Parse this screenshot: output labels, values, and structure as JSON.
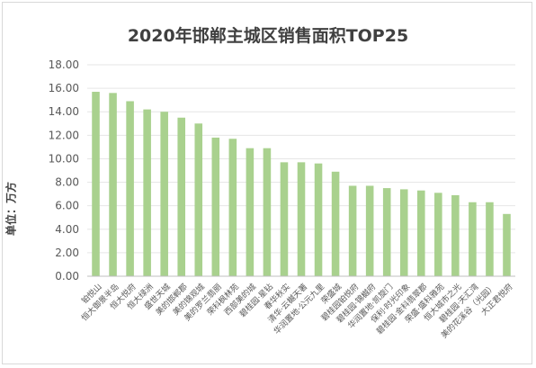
{
  "chart_data": {
    "type": "bar",
    "title": "2020年邯郸主城区销售面积TOP25",
    "ylabel": "单位：万方",
    "ylim": [
      0,
      18
    ],
    "yticks": [
      "0.00",
      "2.00",
      "4.00",
      "6.00",
      "8.00",
      "10.00",
      "12.00",
      "14.00",
      "16.00",
      "18.00"
    ],
    "grid": true,
    "bar_color": "#a9d18e",
    "categories": [
      "铂悦山",
      "恒大御景半岛",
      "恒大悦府",
      "恒大绿洲",
      "盛世天城",
      "美的邯郸郡",
      "美的锦观城",
      "美的罗兰翡丽",
      "荣科枫林苑",
      "西部美的城",
      "碧桂园·星钻",
      "春华秋实",
      "清华·云樾天著",
      "华润置地·公元九里",
      "荣盛城",
      "碧桂园铂悦府",
      "碧桂园·锦樾府",
      "华润置地·凯旋门",
      "保利·时光印象",
      "碧桂园·金科翡翠郡",
      "荣盛·盛科雅苑",
      "恒大城市之光",
      "碧桂园·天汇湾",
      "美的花溪谷（光园）",
      "大正君悦府"
    ],
    "values": [
      15.7,
      15.6,
      14.9,
      14.2,
      14.0,
      13.5,
      13.0,
      11.8,
      11.7,
      10.9,
      10.9,
      9.7,
      9.7,
      9.6,
      8.9,
      7.7,
      7.7,
      7.5,
      7.4,
      7.3,
      7.1,
      6.9,
      6.3,
      6.3,
      5.3
    ]
  }
}
